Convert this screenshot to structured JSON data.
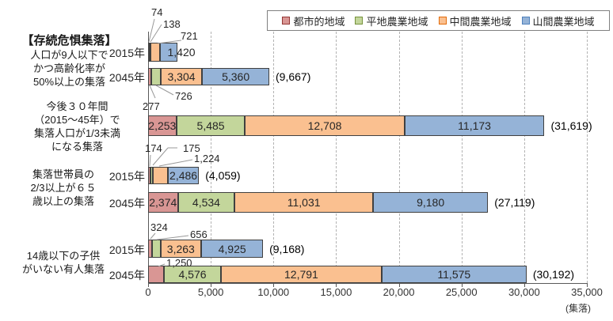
{
  "chart_data": {
    "type": "bar",
    "orientation": "horizontal-stacked",
    "title": "",
    "unit_label": "(集落)",
    "axis": {
      "min": 0,
      "max": 35000,
      "tick_step": 5000,
      "tick_labels": [
        "0",
        "5,000",
        "10,000",
        "15,000",
        "20,000",
        "25,000",
        "30,000",
        "35,000"
      ],
      "grid": "dashed-vertical"
    },
    "series": [
      {
        "name": "都市的地域",
        "fill": "#D99694",
        "marker_border": "#953735"
      },
      {
        "name": "平地農業地域",
        "fill": "#C3D69B",
        "marker_border": "#76923C"
      },
      {
        "name": "中間農業地域",
        "fill": "#FAC090",
        "marker_border": "#E36C0A"
      },
      {
        "name": "山間農業地域",
        "fill": "#95B3D7",
        "marker_border": "#4F81BD"
      }
    ],
    "bar_border": "#404040",
    "groups": [
      {
        "label_lines": [
          "【存続危惧集落】",
          "人口が9人以下で",
          "かつ高齢化率が",
          "50%以上の集落"
        ],
        "bold_first_line": true,
        "rows": [
          {
            "year": "2015年",
            "values": [
              74,
              138,
              721,
              1420
            ],
            "labels": [
              "74",
              "138",
              "721",
              "1,420"
            ],
            "total_label": ""
          },
          {
            "year": "2045年",
            "values": [
              277,
              726,
              3304,
              5360
            ],
            "labels": [
              "277",
              "726",
              "3,304",
              "5,360"
            ],
            "total_label": "(9,667)"
          }
        ]
      },
      {
        "label_lines": [
          "今後３０年間",
          "（2015～45年）で",
          "集落人口が1/3未満",
          "になる集落"
        ],
        "bold_first_line": false,
        "rows": [
          {
            "year": "",
            "values": [
              2253,
              5485,
              12708,
              11173
            ],
            "labels": [
              "2,253",
              "5,485",
              "12,708",
              "11,173"
            ],
            "total_label": "(31,619)"
          }
        ]
      },
      {
        "label_lines": [
          "集落世帯員の",
          "2/3以上が６５",
          "歳以上の集落"
        ],
        "bold_first_line": false,
        "rows": [
          {
            "year": "2015年",
            "values": [
              174,
              175,
              1224,
              2486
            ],
            "labels": [
              "174",
              "175",
              "1,224",
              "2,486"
            ],
            "total_label": "(4,059)"
          },
          {
            "year": "2045年",
            "values": [
              2374,
              4534,
              11031,
              9180
            ],
            "labels": [
              "2,374",
              "4,534",
              "11,031",
              "9,180"
            ],
            "total_label": "(27,119)"
          }
        ]
      },
      {
        "label_lines": [
          "14歳以下の子供",
          "がいない有人集落"
        ],
        "bold_first_line": false,
        "rows": [
          {
            "year": "2015年",
            "values": [
              324,
              656,
              3263,
              4925
            ],
            "labels": [
              "324",
              "656",
              "3,263",
              "4,925"
            ],
            "total_label": "(9,168)"
          },
          {
            "year": "2045年",
            "values": [
              1250,
              4576,
              12791,
              11575
            ],
            "labels": [
              "1,250",
              "4,576",
              "12,791",
              "11,575"
            ],
            "total_label": "(30,192)"
          }
        ]
      }
    ]
  },
  "colors": {
    "axis_line": "#595959",
    "gridline": "#b3b3b3",
    "leader_line": "#999999",
    "text": "#262626"
  }
}
